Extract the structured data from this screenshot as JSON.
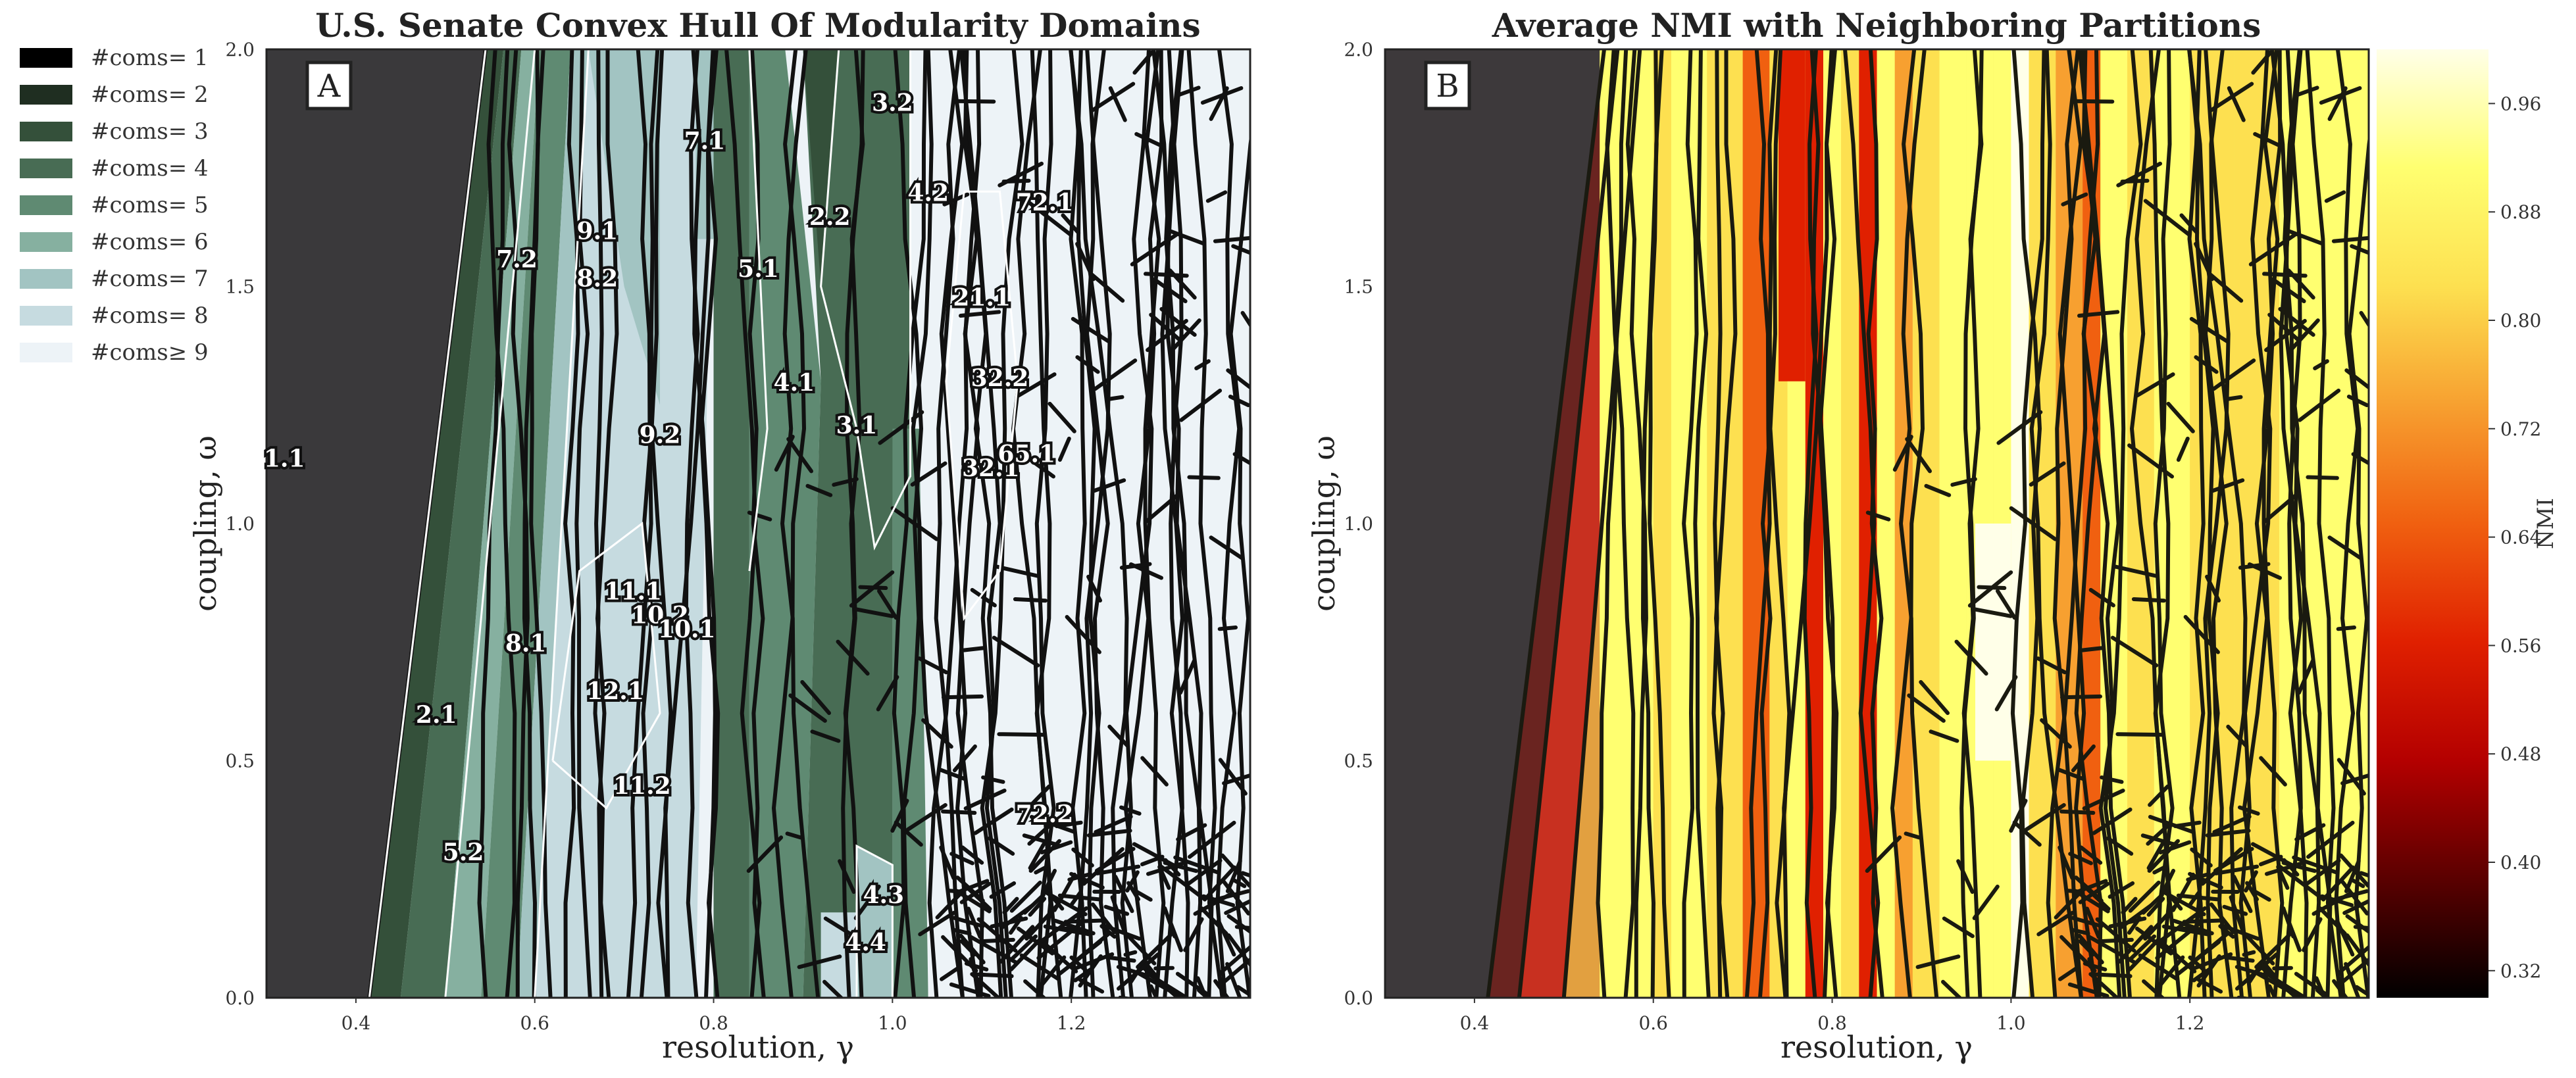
{
  "panels": [
    {
      "panel_label": "A",
      "title": "U.S. Senate Convex Hull Of Modularity Domains",
      "xlabel": "resolution, γ",
      "ylabel": "coupling, ω",
      "xticks": [
        "0.4",
        "0.6",
        "0.8",
        "1.0",
        "1.2"
      ],
      "yticks": [
        "0.0",
        "0.5",
        "1.0",
        "1.5",
        "2.0"
      ]
    },
    {
      "panel_label": "B",
      "title": "Average NMI with Neighboring Partitions",
      "xlabel": "resolution, γ",
      "ylabel": "coupling, ω",
      "xticks": [
        "0.4",
        "0.6",
        "0.8",
        "1.0",
        "1.2"
      ],
      "yticks": [
        "0.0",
        "0.5",
        "1.0",
        "1.5",
        "2.0"
      ],
      "colorbar": {
        "label": "NMI",
        "ticks": [
          "0.32",
          "0.40",
          "0.48",
          "0.56",
          "0.64",
          "0.72",
          "0.80",
          "0.88",
          "0.96"
        ],
        "range": [
          0.3,
          1.0
        ],
        "colormap": [
          "#000000",
          "#5a0000",
          "#b40000",
          "#e02000",
          "#f06010",
          "#f7a030",
          "#fde050",
          "#ffff70",
          "#ffffe8"
        ]
      }
    }
  ],
  "legend": [
    {
      "label": "#coms= 1",
      "color": "#000000"
    },
    {
      "label": "#coms= 2",
      "color": "#1f2e21"
    },
    {
      "label": "#coms= 3",
      "color": "#34503a"
    },
    {
      "label": "#coms= 4",
      "color": "#486c54"
    },
    {
      "label": "#coms= 5",
      "color": "#5f8a72"
    },
    {
      "label": "#coms= 6",
      "color": "#86b0a0"
    },
    {
      "label": "#coms= 7",
      "color": "#a2c4c2"
    },
    {
      "label": "#coms= 8",
      "color": "#c6dbe0"
    },
    {
      "label": "#coms≥ 9",
      "color": "#edf3f7"
    }
  ],
  "chart_data": [
    {
      "type": "heatmap",
      "title": "U.S. Senate Convex Hull Of Modularity Domains",
      "xlabel": "resolution, γ",
      "ylabel": "coupling, ω",
      "xlim": [
        0.3,
        1.4
      ],
      "ylim": [
        0.0,
        2.0
      ],
      "domains": [
        {
          "label": "1.1",
          "x": 0.32,
          "y": 1.12
        },
        {
          "label": "2.1",
          "x": 0.49,
          "y": 0.58
        },
        {
          "label": "5.2",
          "x": 0.52,
          "y": 0.29
        },
        {
          "label": "7.2",
          "x": 0.58,
          "y": 1.54
        },
        {
          "label": "8.1",
          "x": 0.59,
          "y": 0.73
        },
        {
          "label": "9.1",
          "x": 0.67,
          "y": 1.6
        },
        {
          "label": "8.2",
          "x": 0.67,
          "y": 1.5
        },
        {
          "label": "7.1",
          "x": 0.79,
          "y": 1.79
        },
        {
          "label": "9.2",
          "x": 0.74,
          "y": 1.17
        },
        {
          "label": "11.1",
          "x": 0.71,
          "y": 0.84
        },
        {
          "label": "10.2",
          "x": 0.74,
          "y": 0.79
        },
        {
          "label": "10.1",
          "x": 0.77,
          "y": 0.76
        },
        {
          "label": "12.1",
          "x": 0.69,
          "y": 0.63
        },
        {
          "label": "11.2",
          "x": 0.72,
          "y": 0.43
        },
        {
          "label": "5.1",
          "x": 0.85,
          "y": 1.52
        },
        {
          "label": "4.1",
          "x": 0.89,
          "y": 1.28
        },
        {
          "label": "2.2",
          "x": 0.93,
          "y": 1.63
        },
        {
          "label": "3.1",
          "x": 0.96,
          "y": 1.19
        },
        {
          "label": "3.2",
          "x": 1.0,
          "y": 1.87
        },
        {
          "label": "4.2",
          "x": 1.04,
          "y": 1.68
        },
        {
          "label": "21.1",
          "x": 1.1,
          "y": 1.46
        },
        {
          "label": "32.2",
          "x": 1.12,
          "y": 1.29
        },
        {
          "label": "32.1",
          "x": 1.11,
          "y": 1.1
        },
        {
          "label": "65.1",
          "x": 1.15,
          "y": 1.13
        },
        {
          "label": "72.1",
          "x": 1.17,
          "y": 1.66
        },
        {
          "label": "72.2",
          "x": 1.17,
          "y": 0.37
        },
        {
          "label": "4.3",
          "x": 0.99,
          "y": 0.2
        },
        {
          "label": "4.4",
          "x": 0.97,
          "y": 0.1
        }
      ]
    },
    {
      "type": "heatmap",
      "title": "Average NMI with Neighboring Partitions",
      "xlabel": "resolution, γ",
      "ylabel": "coupling, ω",
      "xlim": [
        0.3,
        1.4
      ],
      "ylim": [
        0.0,
        2.0
      ],
      "colorbar_label": "NMI",
      "colorbar_range": [
        0.3,
        1.0
      ]
    }
  ]
}
